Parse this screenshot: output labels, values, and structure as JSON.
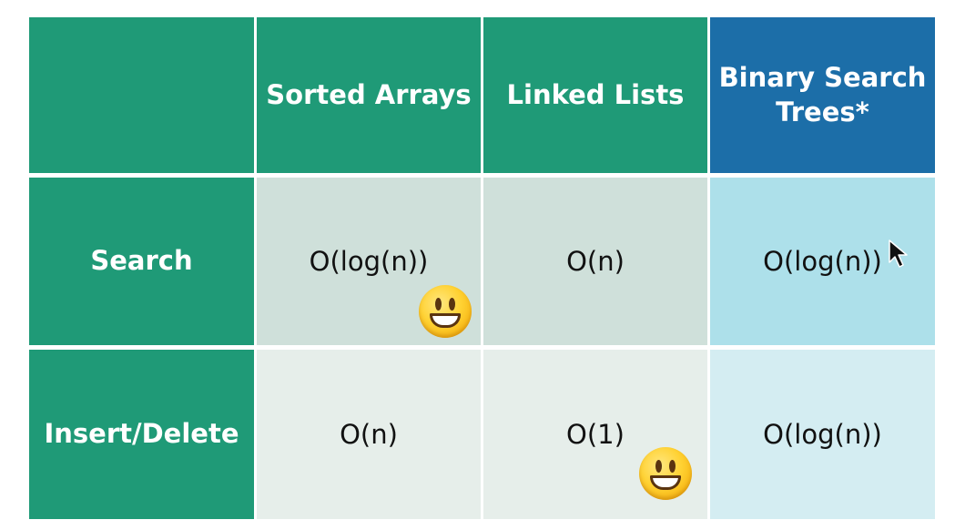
{
  "table": {
    "header": {
      "corner": "",
      "col1": "Sorted Arrays",
      "col2": "Linked Lists",
      "col3_line1": "Binary Search",
      "col3_line2": "Trees*"
    },
    "rows": [
      {
        "label": "Search",
        "sorted_arrays": "O(log(n))",
        "linked_lists": "O(n)",
        "binary_search_trees": "O(log(n))"
      },
      {
        "label": "Insert/Delete",
        "sorted_arrays": "O(n)",
        "linked_lists": "O(1)",
        "binary_search_trees": "O(log(n))"
      }
    ]
  },
  "icons": {
    "smiley_1": "smiley-face-icon",
    "smiley_2": "smiley-face-icon",
    "cursor": "mouse-pointer-icon"
  },
  "colors": {
    "header_teal": "#1f9a77",
    "header_blue": "#1c6ea8",
    "row1_grey": "#cfe0da",
    "row2_grey": "#e6eeea",
    "row1_blue": "#ade0ea",
    "row2_blue": "#d4edf2"
  }
}
